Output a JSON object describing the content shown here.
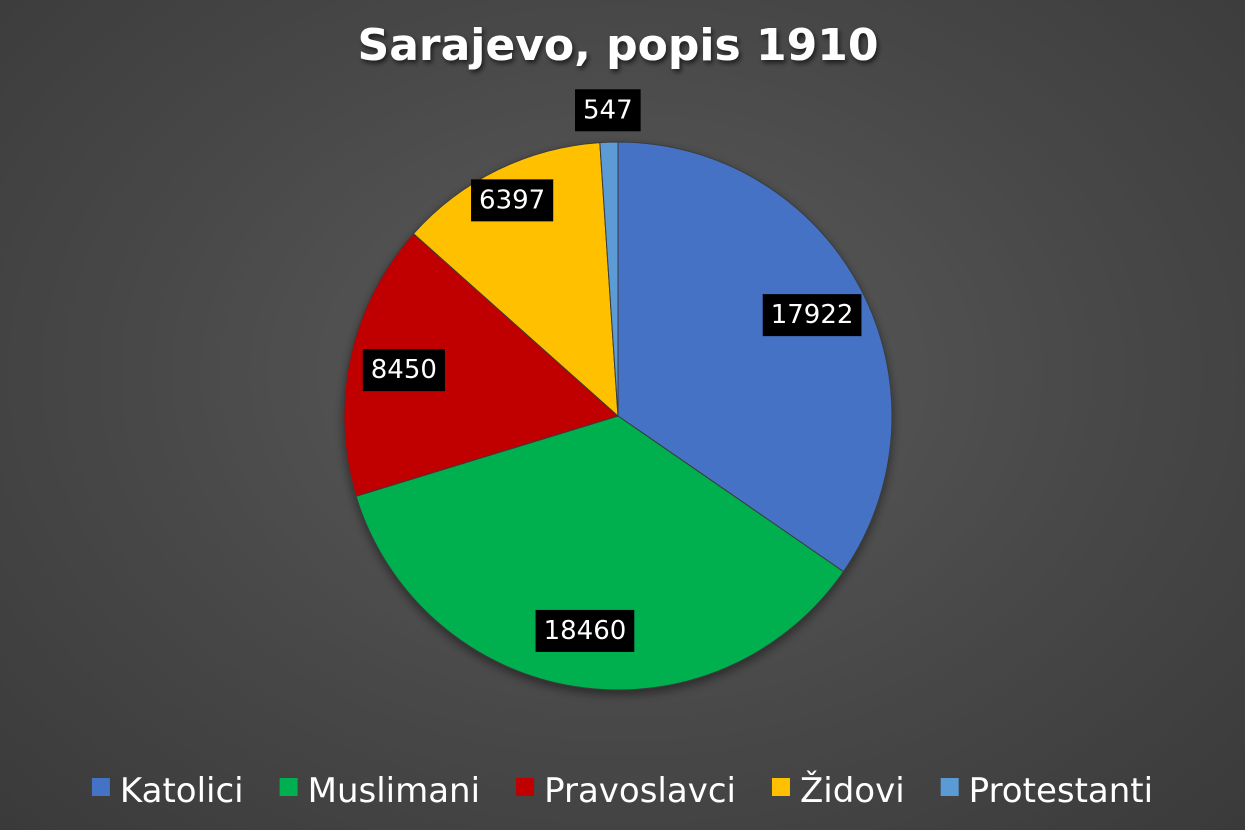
{
  "chart_data": {
    "type": "pie",
    "title": "Sarajevo, popis 1910",
    "categories": [
      "Katolici",
      "Muslimani",
      "Pravoslavci",
      "Židovi",
      "Protestanti"
    ],
    "values": [
      17922,
      18460,
      8450,
      6397,
      547
    ],
    "colors": [
      "#4472c4",
      "#00b050",
      "#c00000",
      "#ffc000",
      "#5b9bd5"
    ],
    "data_labels": [
      "17922",
      "18460",
      "8450",
      "6397",
      "547"
    ],
    "legend": {
      "position": "bottom",
      "entries": [
        "Katolici",
        "Muslimani",
        "Pravoslavci",
        "Židovi",
        "Protestanti"
      ]
    },
    "background": "#4a4a4a",
    "label_background": "#000000"
  }
}
